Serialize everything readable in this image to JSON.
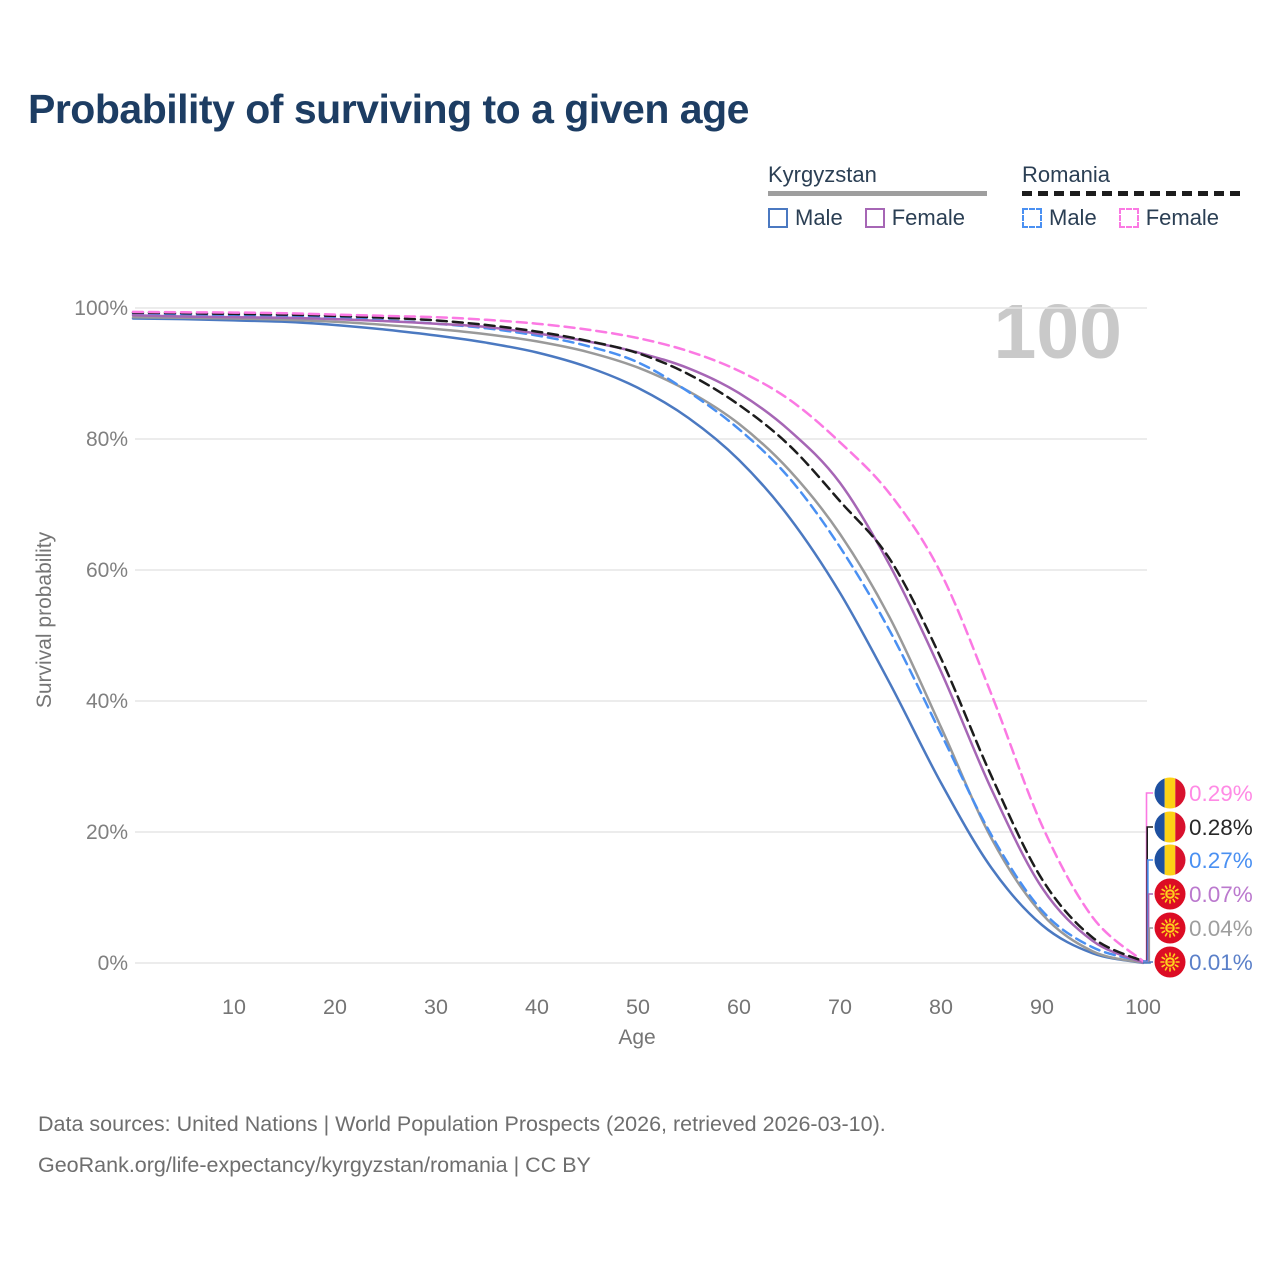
{
  "header": {
    "title": "Probability of surviving to a given age"
  },
  "watermark": "100",
  "legend": {
    "groups": [
      {
        "label": "Kyrgyzstan",
        "underline_style": "solid",
        "underline_color": "#9e9e9e",
        "items": [
          {
            "label": "Male",
            "color": "#4b79c1",
            "dashed": false
          },
          {
            "label": "Female",
            "color": "#a666b5",
            "dashed": false
          }
        ]
      },
      {
        "label": "Romania",
        "underline_style": "dashed",
        "underline_color": "#1c1c1c",
        "items": [
          {
            "label": "Male",
            "color": "#4a90f2",
            "dashed": true
          },
          {
            "label": "Female",
            "color": "#fb79e3",
            "dashed": true
          }
        ]
      }
    ]
  },
  "chart_data": {
    "type": "line",
    "title": "Probability of surviving to a given age",
    "xlabel": "Age",
    "ylabel": "Survival probability",
    "xlim": [
      0,
      100
    ],
    "ylim": [
      0,
      100
    ],
    "grid": "horizontal",
    "x_ticks": [
      10,
      20,
      30,
      40,
      50,
      60,
      70,
      80,
      90,
      100
    ],
    "y_ticks": [
      {
        "value": 0,
        "label": "0%"
      },
      {
        "value": 20,
        "label": "20%"
      },
      {
        "value": 40,
        "label": "40%"
      },
      {
        "value": 60,
        "label": "60%"
      },
      {
        "value": 80,
        "label": "80%"
      },
      {
        "value": 100,
        "label": "100%"
      }
    ],
    "colors": {
      "gridline": "#e6e6e6",
      "y_tick": "#808080",
      "x_tick": "#757575"
    },
    "series": [
      {
        "name": "Kyrgyzstan Male",
        "country": "Kyrgyzstan",
        "sex": "male",
        "color": "#4b79c1",
        "dashed": false,
        "flag": "kg",
        "end_label": "0.01%",
        "end_label_color": "#5b80c9",
        "value_at_100": 0.01,
        "points": [
          [
            0,
            98.4
          ],
          [
            5,
            98.3
          ],
          [
            10,
            98.1
          ],
          [
            15,
            97.9
          ],
          [
            20,
            97.4
          ],
          [
            25,
            96.7
          ],
          [
            30,
            95.8
          ],
          [
            35,
            94.7
          ],
          [
            40,
            93.2
          ],
          [
            45,
            91.0
          ],
          [
            50,
            87.8
          ],
          [
            55,
            83.2
          ],
          [
            60,
            76.8
          ],
          [
            65,
            68.0
          ],
          [
            70,
            56.5
          ],
          [
            75,
            42.5
          ],
          [
            80,
            27.5
          ],
          [
            85,
            14.5
          ],
          [
            90,
            5.8
          ],
          [
            95,
            1.5
          ],
          [
            100,
            0.01
          ]
        ]
      },
      {
        "name": "Kyrgyzstan",
        "country": "Kyrgyzstan",
        "sex": "both",
        "color": "#9a9a9a",
        "dashed": false,
        "flag": "kg",
        "end_label": "0.04%",
        "end_label_color": "#9e9e9e",
        "value_at_100": 0.04,
        "points": [
          [
            0,
            98.6
          ],
          [
            5,
            98.5
          ],
          [
            10,
            98.4
          ],
          [
            15,
            98.2
          ],
          [
            20,
            97.9
          ],
          [
            25,
            97.4
          ],
          [
            30,
            96.8
          ],
          [
            35,
            96.0
          ],
          [
            40,
            94.9
          ],
          [
            45,
            93.3
          ],
          [
            50,
            90.9
          ],
          [
            55,
            87.3
          ],
          [
            60,
            82.3
          ],
          [
            65,
            75.2
          ],
          [
            70,
            65.5
          ],
          [
            75,
            52.5
          ],
          [
            80,
            36.0
          ],
          [
            85,
            19.0
          ],
          [
            90,
            7.5
          ],
          [
            95,
            1.8
          ],
          [
            100,
            0.04
          ]
        ]
      },
      {
        "name": "Romania Male",
        "country": "Romania",
        "sex": "male",
        "color": "#4a90f2",
        "dashed": true,
        "flag": "ro",
        "end_label": "0.27%",
        "end_label_color": "#4a90f2",
        "value_at_100": 0.27,
        "points": [
          [
            0,
            99.1
          ],
          [
            5,
            99.0
          ],
          [
            10,
            98.9
          ],
          [
            15,
            98.8
          ],
          [
            20,
            98.5
          ],
          [
            25,
            98.1
          ],
          [
            30,
            97.6
          ],
          [
            35,
            96.9
          ],
          [
            40,
            95.8
          ],
          [
            45,
            94.2
          ],
          [
            50,
            91.7
          ],
          [
            55,
            87.2
          ],
          [
            60,
            81.5
          ],
          [
            65,
            74.0
          ],
          [
            70,
            63.5
          ],
          [
            75,
            50.5
          ],
          [
            80,
            35.0
          ],
          [
            85,
            19.5
          ],
          [
            90,
            8.0
          ],
          [
            95,
            2.4
          ],
          [
            100,
            0.27
          ]
        ]
      },
      {
        "name": "Kyrgyzstan Female",
        "country": "Kyrgyzstan",
        "sex": "female",
        "color": "#a666b5",
        "dashed": false,
        "flag": "kg",
        "end_label": "0.07%",
        "end_label_color": "#bb79ce",
        "value_at_100": 0.07,
        "points": [
          [
            0,
            98.9
          ],
          [
            5,
            98.7
          ],
          [
            10,
            98.6
          ],
          [
            15,
            98.5
          ],
          [
            20,
            98.3
          ],
          [
            25,
            98.0
          ],
          [
            30,
            97.6
          ],
          [
            35,
            97.1
          ],
          [
            40,
            96.1
          ],
          [
            45,
            94.9
          ],
          [
            50,
            93.2
          ],
          [
            55,
            90.8
          ],
          [
            60,
            87.0
          ],
          [
            65,
            81.3
          ],
          [
            70,
            73.3
          ],
          [
            75,
            60.5
          ],
          [
            80,
            44.5
          ],
          [
            85,
            26.5
          ],
          [
            90,
            11.5
          ],
          [
            95,
            3.4
          ],
          [
            100,
            0.07
          ]
        ]
      },
      {
        "name": "Romania",
        "country": "Romania",
        "sex": "both",
        "color": "#1c1c1c",
        "dashed": true,
        "flag": "ro",
        "end_label": "0.28%",
        "end_label_color": "#282828",
        "value_at_100": 0.28,
        "points": [
          [
            0,
            99.3
          ],
          [
            5,
            99.2
          ],
          [
            10,
            99.1
          ],
          [
            15,
            99.0
          ],
          [
            20,
            98.8
          ],
          [
            25,
            98.5
          ],
          [
            30,
            98.1
          ],
          [
            35,
            97.4
          ],
          [
            40,
            96.4
          ],
          [
            45,
            95.0
          ],
          [
            50,
            93.1
          ],
          [
            55,
            89.9
          ],
          [
            60,
            85.2
          ],
          [
            65,
            79.0
          ],
          [
            70,
            70.5
          ],
          [
            75,
            61.5
          ],
          [
            80,
            46.5
          ],
          [
            85,
            28.5
          ],
          [
            90,
            12.8
          ],
          [
            95,
            3.9
          ],
          [
            100,
            0.28
          ]
        ]
      },
      {
        "name": "Romania Female",
        "country": "Romania",
        "sex": "female",
        "color": "#fb79e3",
        "dashed": true,
        "flag": "ro",
        "end_label": "0.29%",
        "end_label_color": "#ff8ae5",
        "value_at_100": 0.29,
        "points": [
          [
            0,
            99.4
          ],
          [
            5,
            99.35
          ],
          [
            10,
            99.3
          ],
          [
            15,
            99.2
          ],
          [
            20,
            99.0
          ],
          [
            25,
            98.8
          ],
          [
            30,
            98.6
          ],
          [
            35,
            98.2
          ],
          [
            40,
            97.6
          ],
          [
            45,
            96.7
          ],
          [
            50,
            95.4
          ],
          [
            55,
            93.4
          ],
          [
            60,
            90.4
          ],
          [
            65,
            86.0
          ],
          [
            70,
            79.5
          ],
          [
            75,
            71.5
          ],
          [
            80,
            59.5
          ],
          [
            85,
            41.0
          ],
          [
            90,
            21.0
          ],
          [
            95,
            7.0
          ],
          [
            100,
            0.29
          ]
        ]
      }
    ],
    "end_label_order": [
      "0.29%",
      "0.28%",
      "0.27%",
      "0.07%",
      "0.04%",
      "0.01%"
    ],
    "flag_colors": {
      "ro_blue": "#1e50a0",
      "ro_yellow": "#fcd116",
      "ro_red": "#d8112d",
      "kg_red": "#dc0c24",
      "kg_yellow": "#ffd21c"
    }
  },
  "footer": {
    "line1": "Data sources: United Nations | World Population Prospects (2026, retrieved 2026-03-10).",
    "line2": "GeoRank.org/life-expectancy/kyrgyzstan/romania | CC BY"
  }
}
